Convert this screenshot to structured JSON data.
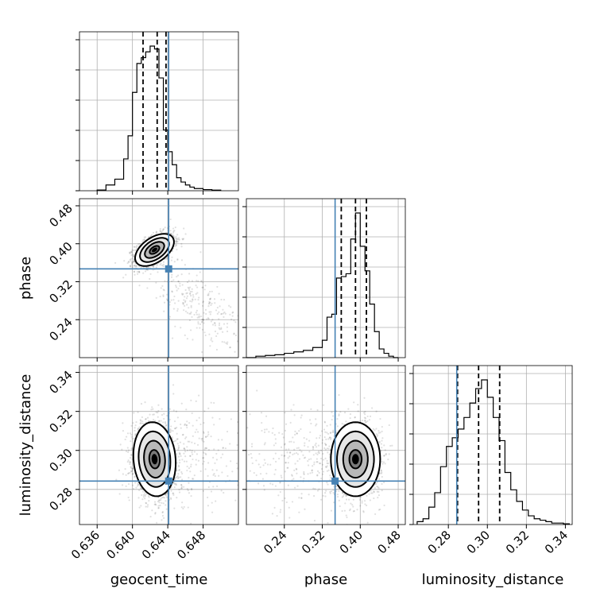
{
  "chart_data": {
    "type": "corner",
    "title": "",
    "parameters": [
      {
        "label": "geocent_time",
        "range": [
          0.634,
          0.652
        ],
        "ticks": [
          "0.636",
          "0.640",
          "0.644",
          "0.648"
        ],
        "tick_values": [
          0.636,
          0.64,
          0.644,
          0.648
        ],
        "truth": 0.6441,
        "quantiles": [
          0.6412,
          0.6428,
          0.6438
        ]
      },
      {
        "label": "phase",
        "range": [
          0.16,
          0.495
        ],
        "ticks": [
          "0.24",
          "0.32",
          "0.40",
          "0.48"
        ],
        "tick_values": [
          0.24,
          0.32,
          0.4,
          0.48
        ],
        "truth": 0.347,
        "quantiles": [
          0.36,
          0.39,
          0.413
        ]
      },
      {
        "label": "luminosity_distance",
        "range": [
          0.262,
          0.3435
        ],
        "ticks": [
          "0.28",
          "0.30",
          "0.32",
          "0.34"
        ],
        "tick_values": [
          0.28,
          0.3,
          0.32,
          0.34
        ],
        "truth": 0.2843,
        "quantiles": [
          0.2847,
          0.2955,
          0.3063
        ]
      }
    ],
    "y_tick_labels": {
      "phase": [
        "0.48",
        "0.40",
        "0.32",
        "0.24"
      ],
      "luminosity_distance": [
        "0.34",
        "0.32",
        "0.30",
        "0.28"
      ]
    },
    "histograms": {
      "geocent_time": {
        "edges": [
          0.636,
          0.637,
          0.638,
          0.639,
          0.6395,
          0.64,
          0.6405,
          0.641,
          0.6415,
          0.642,
          0.6425,
          0.643,
          0.6435,
          0.644,
          0.6445,
          0.645,
          0.6455,
          0.646,
          0.6465,
          0.647,
          0.648,
          0.649,
          0.65
        ],
        "counts": [
          0.005,
          0.04,
          0.08,
          0.22,
          0.38,
          0.68,
          0.88,
          0.92,
          0.96,
          1.0,
          0.98,
          0.78,
          0.42,
          0.27,
          0.18,
          0.09,
          0.06,
          0.04,
          0.025,
          0.015,
          0.008,
          0.004
        ]
      },
      "phase": {
        "edges": [
          0.16,
          0.18,
          0.2,
          0.22,
          0.24,
          0.26,
          0.28,
          0.3,
          0.32,
          0.33,
          0.34,
          0.35,
          0.36,
          0.37,
          0.38,
          0.39,
          0.4,
          0.41,
          0.42,
          0.43,
          0.44,
          0.45,
          0.46,
          0.47,
          0.48
        ],
        "counts": [
          0.0,
          0.01,
          0.015,
          0.02,
          0.03,
          0.04,
          0.05,
          0.07,
          0.12,
          0.28,
          0.3,
          0.55,
          0.56,
          0.58,
          0.82,
          1.0,
          0.77,
          0.6,
          0.37,
          0.18,
          0.06,
          0.03,
          0.01,
          0.0
        ]
      },
      "luminosity_distance": {
        "edges": [
          0.264,
          0.267,
          0.27,
          0.273,
          0.276,
          0.279,
          0.282,
          0.285,
          0.288,
          0.291,
          0.294,
          0.297,
          0.3,
          0.303,
          0.306,
          0.309,
          0.312,
          0.315,
          0.318,
          0.321,
          0.324,
          0.327,
          0.33,
          0.333,
          0.336,
          0.339,
          0.342
        ],
        "counts": [
          0.02,
          0.04,
          0.12,
          0.22,
          0.4,
          0.54,
          0.6,
          0.66,
          0.74,
          0.84,
          0.94,
          1.0,
          0.88,
          0.74,
          0.58,
          0.36,
          0.24,
          0.16,
          0.1,
          0.06,
          0.04,
          0.03,
          0.02,
          0.01,
          0.01,
          0.005
        ]
      }
    },
    "joint": [
      {
        "x": "geocent_time",
        "y": "phase",
        "mean": [
          0.6425,
          0.387
        ],
        "sd": [
          0.0011,
          0.017
        ],
        "rho": 0.5,
        "tail": {
          "mean": [
            0.6475,
            0.27
          ],
          "sd": [
            0.0025,
            0.05
          ],
          "rho": -0.6
        }
      },
      {
        "x": "geocent_time",
        "y": "luminosity_distance",
        "mean": [
          0.6425,
          0.2955
        ],
        "sd": [
          0.0012,
          0.0095
        ],
        "rho": -0.1,
        "tail": {
          "mean": [
            0.6465,
            0.295
          ],
          "sd": [
            0.003,
            0.014
          ],
          "rho": 0.0
        }
      },
      {
        "x": "phase",
        "y": "luminosity_distance",
        "mean": [
          0.39,
          0.2955
        ],
        "sd": [
          0.026,
          0.0095
        ],
        "rho": 0.0,
        "tail": {
          "mean": [
            0.27,
            0.295
          ],
          "sd": [
            0.06,
            0.014
          ],
          "rho": 0.0
        }
      }
    ],
    "contour_levels": [
      0.5,
      1.0,
      1.5,
      2.0
    ],
    "grid": true,
    "colors": {
      "truth": "#4682b4",
      "density": "#000000",
      "grid": "#b0b0b0"
    }
  }
}
